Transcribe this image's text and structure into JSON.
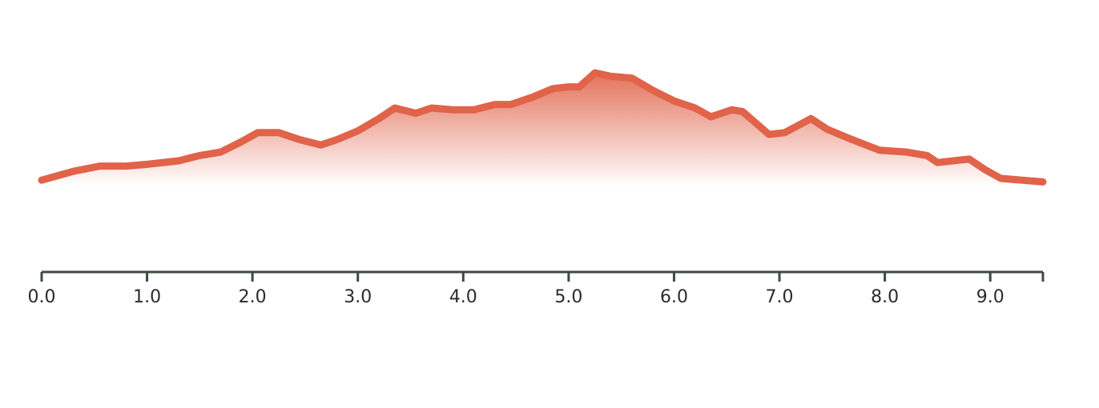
{
  "chart_data": {
    "type": "area",
    "color": "#e0634a",
    "axis_color": "#3e4a40",
    "x": [
      0.0,
      0.3,
      0.55,
      0.8,
      1.0,
      1.3,
      1.5,
      1.7,
      1.9,
      2.05,
      2.25,
      2.45,
      2.65,
      2.8,
      3.0,
      3.2,
      3.35,
      3.55,
      3.7,
      3.9,
      4.1,
      4.3,
      4.45,
      4.65,
      4.85,
      5.0,
      5.1,
      5.25,
      5.4,
      5.6,
      5.8,
      6.0,
      6.2,
      6.35,
      6.55,
      6.65,
      6.9,
      7.05,
      7.3,
      7.45,
      7.65,
      7.95,
      8.2,
      8.4,
      8.5,
      8.8,
      8.95,
      9.1,
      9.3,
      9.5
    ],
    "values": [
      34,
      39,
      42,
      42,
      43,
      45,
      48,
      50,
      56,
      61,
      61,
      57,
      54,
      57,
      62,
      69,
      75,
      72,
      75,
      74,
      74,
      77,
      77,
      81,
      86,
      87,
      87,
      95,
      93,
      92,
      85,
      79,
      75,
      70,
      74,
      73,
      60,
      61,
      69,
      63,
      58,
      51,
      50,
      48,
      44,
      46,
      40,
      35,
      34,
      33
    ],
    "xlim": [
      0,
      9.5
    ],
    "ylim": [
      0,
      100
    ],
    "xticks": [
      {
        "value": 0,
        "label": "0.0"
      },
      {
        "value": 1,
        "label": "1.0"
      },
      {
        "value": 2,
        "label": "2.0"
      },
      {
        "value": 3,
        "label": "3.0"
      },
      {
        "value": 4,
        "label": "4.0"
      },
      {
        "value": 5,
        "label": "5.0"
      },
      {
        "value": 6,
        "label": "6.0"
      },
      {
        "value": 7,
        "label": "7.0"
      },
      {
        "value": 8,
        "label": "8.0"
      },
      {
        "value": 9,
        "label": "9.0"
      }
    ]
  }
}
